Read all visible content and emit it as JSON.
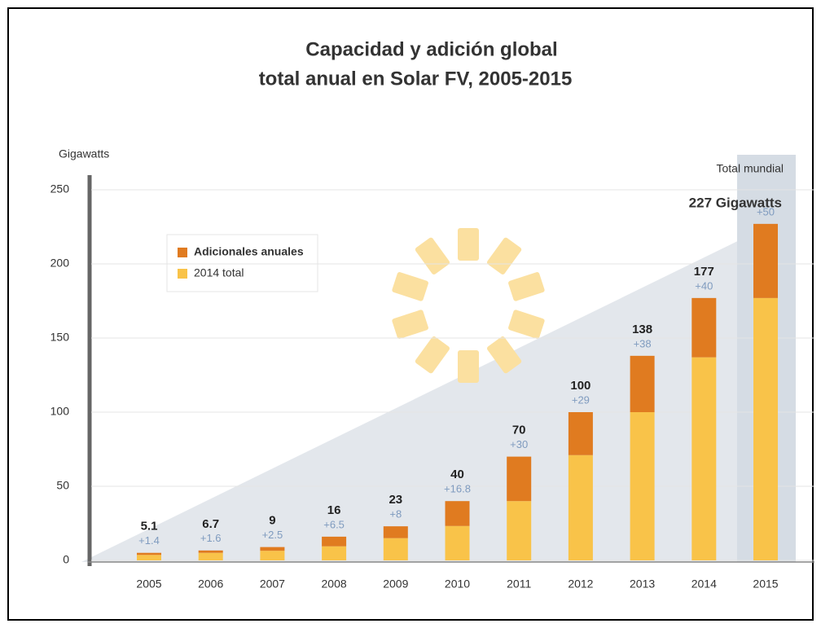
{
  "chart_data": {
    "type": "stacked_bar",
    "title": [
      "Capacidad y adición global",
      "total anual en Solar FV, 2005-2015"
    ],
    "ylabel": "Gigawatts",
    "annotations": [
      "Total mundial",
      "227 Gigawatts"
    ],
    "categories": [
      "2005",
      "2006",
      "2007",
      "2008",
      "2009",
      "2010",
      "2011",
      "2012",
      "2013",
      "2014",
      "2015"
    ],
    "series": [
      {
        "name": "2014 total",
        "color": "#f9c349",
        "values": [
          3.7,
          5.1,
          6.5,
          9.5,
          15,
          23.2,
          40,
          71,
          100,
          137,
          177
        ]
      },
      {
        "name": "Adicionales anuales",
        "color": "#e07b20",
        "values": [
          1.4,
          1.6,
          2.5,
          6.5,
          8,
          16.8,
          30,
          29,
          38,
          40,
          50
        ],
        "value_labels": [
          "+1.4",
          "+1.6",
          "+2.5",
          "+6.5",
          "+8",
          "+16.8",
          "+30",
          "+29",
          "+38",
          "+40",
          "+50"
        ]
      }
    ],
    "totals": [
      5.1,
      6.7,
      9,
      16,
      23,
      40,
      70,
      100,
      138,
      177,
      null
    ],
    "ylim": [
      0,
      250
    ],
    "yticks": [
      0,
      50,
      100,
      150,
      200,
      250
    ],
    "grid": true
  }
}
